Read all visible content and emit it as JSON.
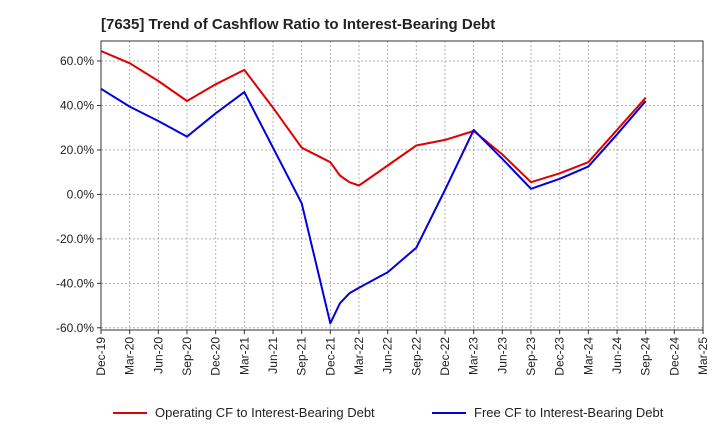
{
  "chart_data": {
    "type": "line",
    "title": "[7635]  Trend of Cashflow Ratio to Interest-Bearing Debt",
    "xlabel": "",
    "ylabel": "",
    "x": [
      "Dec-19",
      "Mar-20",
      "Jun-20",
      "Sep-20",
      "Dec-20",
      "Mar-21",
      "Jun-21",
      "Sep-21",
      "Dec-21",
      "Jan-22",
      "Feb-22",
      "Mar-22",
      "Jun-22",
      "Sep-22",
      "Dec-22",
      "Mar-23",
      "Jun-23",
      "Sep-23",
      "Dec-23",
      "Mar-24",
      "Jun-24",
      "Sep-24"
    ],
    "x_tick_labels": [
      "Dec-19",
      "Mar-20",
      "Jun-20",
      "Sep-20",
      "Dec-20",
      "Mar-21",
      "Jun-21",
      "Sep-21",
      "Dec-21",
      "Mar-22",
      "Jun-22",
      "Sep-22",
      "Dec-22",
      "Mar-23",
      "Jun-23",
      "Sep-23",
      "Dec-23",
      "Mar-24",
      "Jun-24",
      "Sep-24",
      "Dec-24",
      "Mar-25"
    ],
    "y_tick_labels": [
      "60.0%",
      "40.0%",
      "20.0%",
      "0.0%",
      "-20.0%",
      "-40.0%",
      "-60.0%"
    ],
    "y_ticks": [
      60,
      40,
      20,
      0,
      -20,
      -40,
      -60
    ],
    "ylim": [
      -61,
      69
    ],
    "x_range": [
      "Dec-19",
      "Mar-25"
    ],
    "grid": true,
    "legend_position": "bottom",
    "series": [
      {
        "name": "Operating CF to Interest-Bearing Debt",
        "color": "#e00000",
        "x": [
          "Dec-19",
          "Mar-20",
          "Jun-20",
          "Sep-20",
          "Dec-20",
          "Mar-21",
          "Jun-21",
          "Sep-21",
          "Dec-21",
          "Jan-22",
          "Feb-22",
          "Mar-22",
          "Jun-22",
          "Sep-22",
          "Dec-22",
          "Mar-23",
          "Jun-23",
          "Sep-23",
          "Dec-23",
          "Mar-24",
          "Jun-24",
          "Sep-24"
        ],
        "values": [
          64.5,
          59,
          51,
          42,
          49.5,
          56,
          39,
          21,
          14.5,
          8.5,
          5.5,
          4,
          13,
          22,
          24.5,
          28.5,
          18,
          5.5,
          9.5,
          14.5,
          29,
          43.5
        ]
      },
      {
        "name": "Free CF to Interest-Bearing Debt",
        "color": "#0000e0",
        "x": [
          "Dec-19",
          "Mar-20",
          "Jun-20",
          "Sep-20",
          "Dec-20",
          "Mar-21",
          "Jun-21",
          "Sep-21",
          "Dec-21",
          "Jan-22",
          "Feb-22",
          "Mar-22",
          "Jun-22",
          "Sep-22",
          "Dec-22",
          "Mar-23",
          "Jun-23",
          "Sep-23",
          "Dec-23",
          "Mar-24",
          "Jun-24",
          "Sep-24"
        ],
        "values": [
          47.5,
          39.5,
          33,
          26,
          36.5,
          46,
          21,
          -4,
          -58,
          -49,
          -44.5,
          -42,
          -35,
          -24,
          2,
          29,
          16,
          2.5,
          7,
          12.5,
          27,
          42
        ]
      }
    ]
  },
  "colors": {
    "grid": "#b0b0b0",
    "axis": "#333333",
    "text": "#222222"
  }
}
